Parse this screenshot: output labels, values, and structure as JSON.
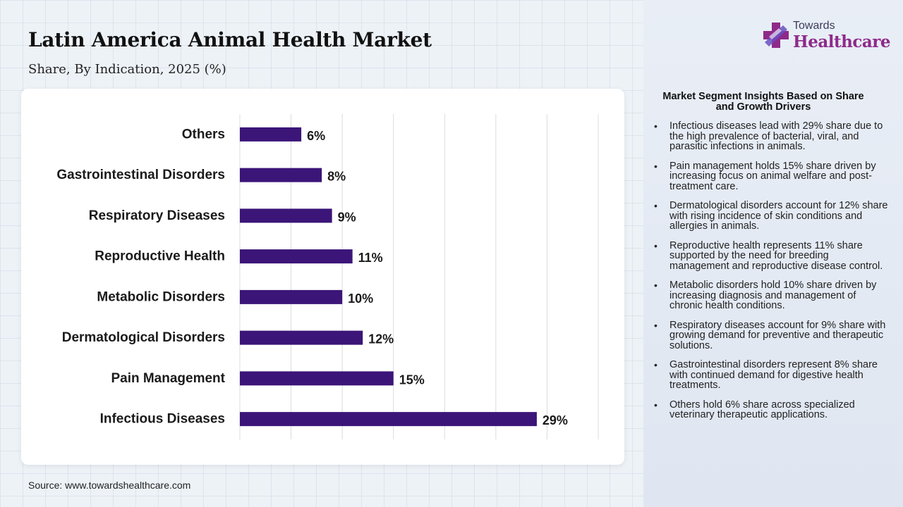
{
  "title": "Latin America Animal Health Market",
  "subtitle": "Share, By Indication, 2025 (%)",
  "source": "Source: www.towardshealthcare.com",
  "logo": {
    "line1": "Towards",
    "line2": "Healthcare",
    "icon": "cross-logo-icon"
  },
  "colors": {
    "bar": "#3b1578",
    "brand": "#8e2a8a"
  },
  "chart_data": {
    "type": "bar",
    "orientation": "horizontal",
    "categories": [
      "Others",
      "Gastrointestinal Disorders",
      "Respiratory Diseases",
      "Reproductive Health",
      "Metabolic Disorders",
      "Dermatological Disorders",
      "Pain Management",
      "Infectious Diseases"
    ],
    "values": [
      6,
      8,
      9,
      11,
      10,
      12,
      15,
      29
    ],
    "labels": [
      "6%",
      "8%",
      "9%",
      "11%",
      "10%",
      "12%",
      "15%",
      "29%"
    ],
    "xlim": [
      0,
      35
    ],
    "grid": true,
    "legend": "none"
  },
  "insights": {
    "heading": "Market Segment Insights Based on Share and Growth Drivers",
    "items": [
      "Infectious diseases lead with 29% share due to the high prevalence of bacterial, viral, and parasitic infections in animals.",
      "Pain management holds 15% share driven by increasing focus on animal welfare and post-treatment care.",
      "Dermatological disorders account for 12% share with rising incidence of skin conditions and allergies in animals.",
      "Reproductive health represents 11% share supported by the need for breeding management and reproductive disease control.",
      "Metabolic disorders hold 10% share driven by increasing diagnosis and management of chronic health conditions.",
      "Respiratory diseases account for 9% share with growing demand for preventive and therapeutic solutions.",
      "Gastrointestinal disorders represent 8% share with continued demand for digestive health treatments.",
      "Others hold 6% share across specialized veterinary therapeutic applications."
    ]
  }
}
